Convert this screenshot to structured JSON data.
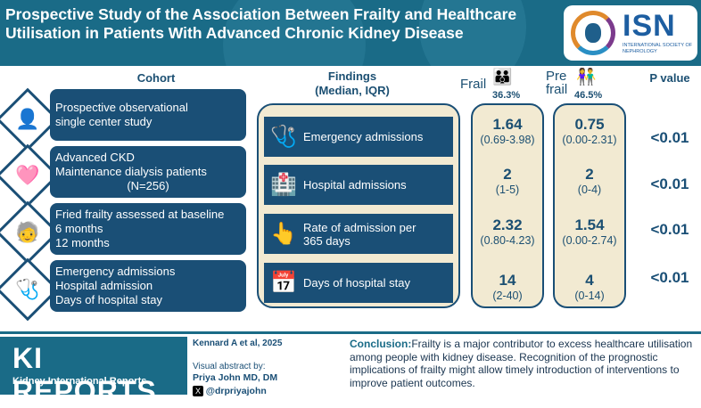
{
  "header": {
    "title": "Prospective Study of the Association Between Frailty and Healthcare Utilisation in Patients With Advanced Chronic Kidney Disease",
    "logo_text": "ISN",
    "logo_subtext": "INTERNATIONAL SOCIETY OF NEPHROLOGY"
  },
  "columns": {
    "cohort": "Cohort",
    "findings": "Findings",
    "findings_sub": "(Median, IQR)",
    "frail": "Frail",
    "pre_frail_1": "Pre",
    "pre_frail_2": "frail",
    "frail_pct": "36.3%",
    "pre_frail_pct": "46.5%",
    "p_value": "P value"
  },
  "cohort": [
    {
      "line1": "Prospective observational",
      "line2": "single center study",
      "line3": "",
      "icon": "person-badge-icon"
    },
    {
      "line1": "Advanced CKD",
      "line2": "Maintenance dialysis patients",
      "line3": "(N=256)",
      "icon": "dialysis-icon"
    },
    {
      "line1": "Fried frailty assessed at baseline",
      "line2": "6 months",
      "line3": "12 months",
      "icon": "elderly-icon"
    },
    {
      "line1": "Emergency admissions",
      "line2": "Hospital admission",
      "line3": "Days of hospital stay",
      "icon": "patient-drip-icon"
    }
  ],
  "findings": [
    {
      "label": "Emergency admissions",
      "icon": "patient-drip-icon",
      "frail": "1.64",
      "frail_iqr": "(0.69-3.98)",
      "pre": "0.75",
      "pre_iqr": "(0.00-2.31)",
      "p": "<0.01"
    },
    {
      "label": "Hospital admissions",
      "icon": "hospital-icon",
      "frail": "2",
      "frail_iqr": "(1-5)",
      "pre": "2",
      "pre_iqr": "(0-4)",
      "p": "<0.01"
    },
    {
      "label": "Rate of admission per 365 days",
      "icon": "rating-icon",
      "frail": "2.32",
      "frail_iqr": "(0.80-4.23)",
      "pre": "1.54",
      "pre_iqr": "(0.00-2.74)",
      "p": "<0.01"
    },
    {
      "label": "Days of hospital stay",
      "icon": "calendar-icon",
      "frail": "14",
      "frail_iqr": "(2-40)",
      "pre": "4",
      "pre_iqr": "(0-14)",
      "p": "<0.01"
    }
  ],
  "footer": {
    "journal": "KI REPORTS",
    "journal_sub": "Kidney International Reports",
    "citation": "Kennard A et al, 2025",
    "abstract_by": "Visual abstract by:",
    "author": "Priya John MD, DM",
    "handle": "@drpriyajohn",
    "conclusion_label": "Conclusion:",
    "conclusion_text": "Frailty is a major contributor to excess healthcare utilisation among people with kidney disease. Recognition of the prognostic implications of frailty might allow timely introduction of interventions to improve patient outcomes."
  },
  "colors": {
    "primary": "#1a4f76",
    "header": "#1a6b87",
    "panel": "#f2ead2"
  }
}
